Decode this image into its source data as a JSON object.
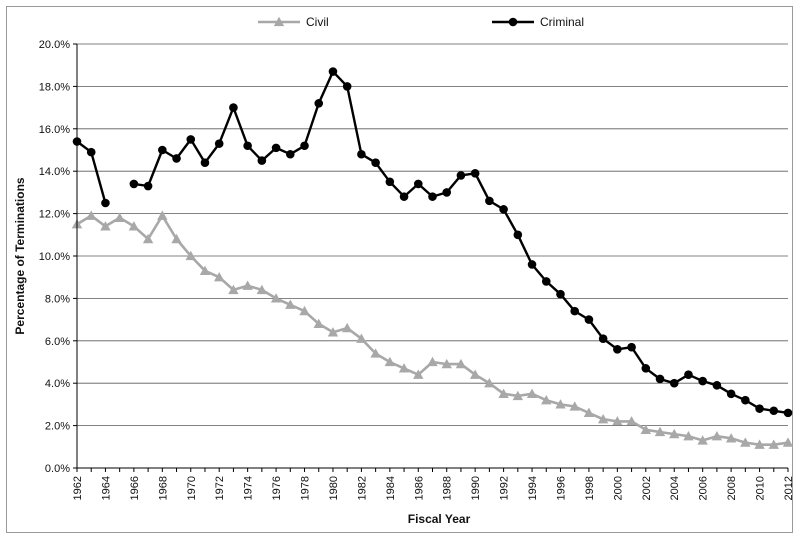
{
  "chart_data": {
    "type": "line",
    "title": "",
    "xlabel": "Fiscal Year",
    "ylabel": "Percentage of Terminations",
    "ylim": [
      0,
      20
    ],
    "xlim": [
      1962,
      2012
    ],
    "y_ticks": [
      "0.0%",
      "2.0%",
      "4.0%",
      "6.0%",
      "8.0%",
      "10.0%",
      "12.0%",
      "14.0%",
      "16.0%",
      "18.0%",
      "20.0%"
    ],
    "x_ticks": [
      "1962",
      "1964",
      "1966",
      "1968",
      "1970",
      "1972",
      "1974",
      "1976",
      "1978",
      "1980",
      "1982",
      "1984",
      "1986",
      "1988",
      "1990",
      "1992",
      "1994",
      "1996",
      "1998",
      "2000",
      "2002",
      "2004",
      "2006",
      "2008",
      "2010",
      "2012"
    ],
    "grid": "horizontal",
    "legend": "top-center",
    "series": [
      {
        "name": "Civil",
        "color": "#a8a8a8",
        "marker": "triangle",
        "points": [
          [
            1962,
            11.5
          ],
          [
            1963,
            11.9
          ],
          [
            1964,
            11.4
          ],
          [
            1965,
            11.8
          ],
          [
            1966,
            11.4
          ],
          [
            1967,
            10.8
          ],
          [
            1968,
            11.9
          ],
          [
            1969,
            10.8
          ],
          [
            1970,
            10.0
          ],
          [
            1971,
            9.3
          ],
          [
            1972,
            9.0
          ],
          [
            1973,
            8.4
          ],
          [
            1974,
            8.6
          ],
          [
            1975,
            8.4
          ],
          [
            1976,
            8.0
          ],
          [
            1977,
            7.7
          ],
          [
            1978,
            7.4
          ],
          [
            1979,
            6.8
          ],
          [
            1980,
            6.4
          ],
          [
            1981,
            6.6
          ],
          [
            1982,
            6.1
          ],
          [
            1983,
            5.4
          ],
          [
            1984,
            5.0
          ],
          [
            1985,
            4.7
          ],
          [
            1986,
            4.4
          ],
          [
            1987,
            5.0
          ],
          [
            1988,
            4.9
          ],
          [
            1989,
            4.9
          ],
          [
            1990,
            4.4
          ],
          [
            1991,
            4.0
          ],
          [
            1992,
            3.5
          ],
          [
            1993,
            3.4
          ],
          [
            1994,
            3.5
          ],
          [
            1995,
            3.2
          ],
          [
            1996,
            3.0
          ],
          [
            1997,
            2.9
          ],
          [
            1998,
            2.6
          ],
          [
            1999,
            2.3
          ],
          [
            2000,
            2.2
          ],
          [
            2001,
            2.2
          ],
          [
            2002,
            1.8
          ],
          [
            2003,
            1.7
          ],
          [
            2004,
            1.6
          ],
          [
            2005,
            1.5
          ],
          [
            2006,
            1.3
          ],
          [
            2007,
            1.5
          ],
          [
            2008,
            1.4
          ],
          [
            2009,
            1.2
          ],
          [
            2010,
            1.1
          ],
          [
            2011,
            1.1
          ],
          [
            2012,
            1.2
          ]
        ]
      },
      {
        "name": "Criminal",
        "color": "#000000",
        "marker": "circle",
        "segments": [
          [
            [
              1962,
              15.4
            ],
            [
              1963,
              14.9
            ],
            [
              1964,
              12.5
            ]
          ],
          [
            [
              1966,
              13.4
            ],
            [
              1967,
              13.3
            ],
            [
              1968,
              15.0
            ],
            [
              1969,
              14.6
            ],
            [
              1970,
              15.5
            ],
            [
              1971,
              14.4
            ],
            [
              1972,
              15.3
            ],
            [
              1973,
              17.0
            ],
            [
              1974,
              15.2
            ],
            [
              1975,
              14.5
            ],
            [
              1976,
              15.1
            ],
            [
              1977,
              14.8
            ],
            [
              1978,
              15.2
            ],
            [
              1979,
              17.2
            ],
            [
              1980,
              18.7
            ],
            [
              1981,
              18.0
            ],
            [
              1982,
              14.8
            ],
            [
              1983,
              14.4
            ],
            [
              1984,
              13.5
            ],
            [
              1985,
              12.8
            ],
            [
              1986,
              13.4
            ],
            [
              1987,
              12.8
            ],
            [
              1988,
              13.0
            ],
            [
              1989,
              13.8
            ],
            [
              1990,
              13.9
            ],
            [
              1991,
              12.6
            ],
            [
              1992,
              12.2
            ],
            [
              1993,
              11.0
            ],
            [
              1994,
              9.6
            ],
            [
              1995,
              8.8
            ],
            [
              1996,
              8.2
            ],
            [
              1997,
              7.4
            ],
            [
              1998,
              7.0
            ],
            [
              1999,
              6.1
            ],
            [
              2000,
              5.6
            ],
            [
              2001,
              5.7
            ],
            [
              2002,
              4.7
            ],
            [
              2003,
              4.2
            ],
            [
              2004,
              4.0
            ],
            [
              2005,
              4.4
            ],
            [
              2006,
              4.1
            ],
            [
              2007,
              3.9
            ],
            [
              2008,
              3.5
            ],
            [
              2009,
              3.2
            ],
            [
              2010,
              2.8
            ],
            [
              2011,
              2.7
            ],
            [
              2012,
              2.6
            ]
          ]
        ]
      }
    ]
  }
}
